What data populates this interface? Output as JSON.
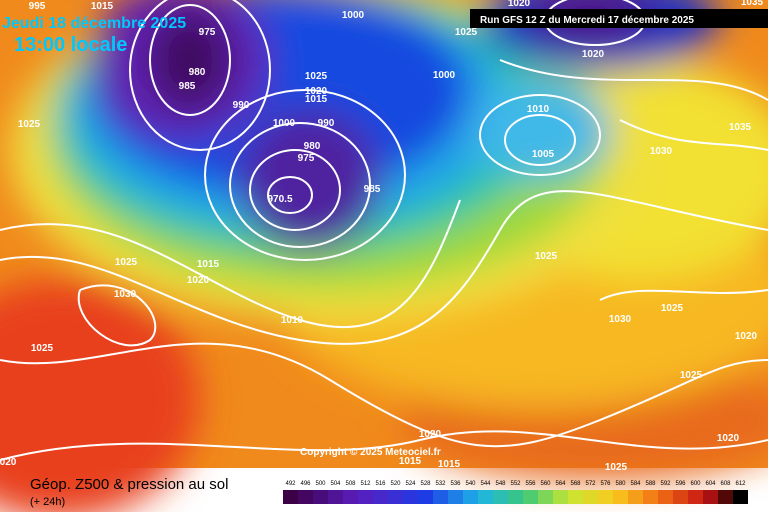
{
  "header": {
    "date": "Jeudi 18 décembre 2025",
    "time": "13:00 locale",
    "run": "Run GFS 12 Z du Mercredi 17 décembre 2025"
  },
  "map": {
    "copyright": "Copyright © 2025 Meteociel.fr",
    "pressure_labels": [
      "995",
      "1015",
      "1000",
      "1025",
      "1020",
      "1035",
      "975",
      "980",
      "985",
      "990",
      "1025",
      "1025",
      "1020",
      "1015",
      "1000",
      "990",
      "1000",
      "1010",
      "1005",
      "1020",
      "1030",
      "1035",
      "980",
      "975",
      "970.5",
      "985",
      "1025",
      "1015",
      "1020",
      "1030",
      "1025",
      "1010",
      "1025",
      "1030",
      "1025",
      "1020",
      "1025",
      "1020",
      "1020",
      "1015",
      "1015",
      "1025",
      "020"
    ]
  },
  "footer": {
    "title": "Géop. Z500 & pression au sol",
    "lead": "(+ 24h)",
    "scale": [
      492,
      496,
      500,
      504,
      508,
      512,
      516,
      520,
      524,
      528,
      532,
      536,
      540,
      544,
      548,
      552,
      556,
      560,
      564,
      568,
      572,
      576,
      580,
      584,
      588,
      592,
      596,
      600,
      604,
      608,
      612
    ]
  }
}
